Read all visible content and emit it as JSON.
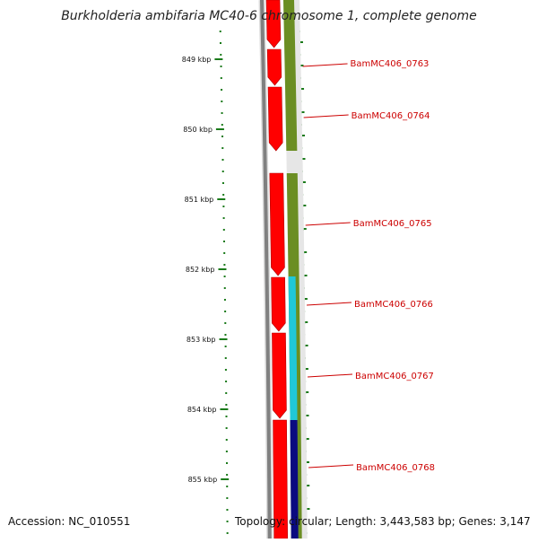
{
  "title": "Burkholderia ambifaria MC40-6 chromosome 1, complete genome",
  "accession_text": "Accession: NC_010551",
  "stats_text": "Topology: circular; Length: 3,443,583 bp; Genes: 3,147",
  "axis": {
    "unit": "kbp",
    "tick_labels": [
      "849 kbp",
      "850 kbp",
      "851 kbp",
      "852 kbp",
      "853 kbp",
      "854 kbp",
      "855 kbp"
    ]
  },
  "colors": {
    "backbone": "#808080",
    "forward_cds": "#ff0000",
    "gc_track": "#6b8e23",
    "teal_segment": "#20c8d8",
    "navy_segment": "#0a0a80",
    "tick": "#1a7a1a",
    "label": "#cc0000"
  },
  "genes": [
    {
      "label": "BamMC406_0763"
    },
    {
      "label": "BamMC406_0764"
    },
    {
      "label": "BamMC406_0765"
    },
    {
      "label": "BamMC406_0766"
    },
    {
      "label": "BamMC406_0767"
    },
    {
      "label": "BamMC406_0768"
    }
  ]
}
